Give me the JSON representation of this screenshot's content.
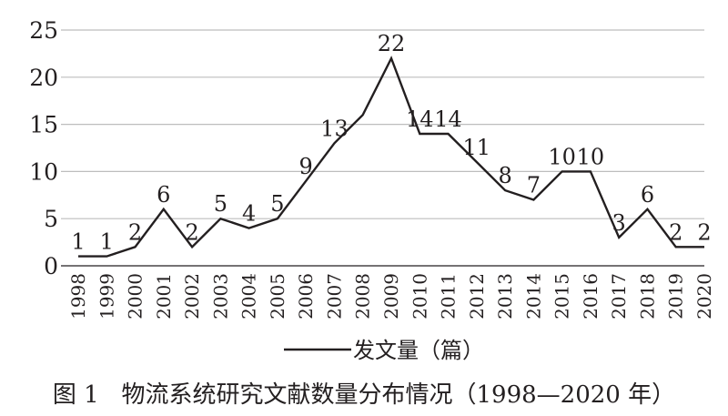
{
  "chart_data": {
    "type": "line",
    "title": "",
    "xlabel": "",
    "ylabel": "",
    "ylim": [
      0,
      25
    ],
    "yticks": [
      0,
      5,
      10,
      15,
      20,
      25
    ],
    "grid": "horizontal",
    "legend": "bottom-center",
    "x": [
      "1998",
      "1999",
      "2000",
      "2001",
      "2002",
      "2003",
      "2004",
      "2005",
      "2006",
      "2007",
      "2008",
      "2009",
      "2010",
      "2011",
      "2012",
      "2013",
      "2014",
      "2015",
      "2016",
      "2017",
      "2018",
      "2019",
      "2020"
    ],
    "series": [
      {
        "name": "发文量（篇）",
        "color": "#231f20",
        "values": [
          1,
          1,
          2,
          6,
          2,
          5,
          4,
          5,
          9,
          13,
          16,
          22,
          14,
          14,
          11,
          8,
          7,
          10,
          10,
          3,
          6,
          2,
          2
        ],
        "data_labels": [
          "1",
          "1",
          "2",
          "6",
          "2",
          "5",
          "4",
          "5",
          "9",
          "13",
          "",
          "22",
          "14",
          "14",
          "11",
          "8",
          "7",
          "10",
          "10",
          "3",
          "6",
          "2",
          "2"
        ]
      }
    ]
  },
  "caption": "图 1   物流系统研究文献数量分布情况（1998—2020 年）"
}
